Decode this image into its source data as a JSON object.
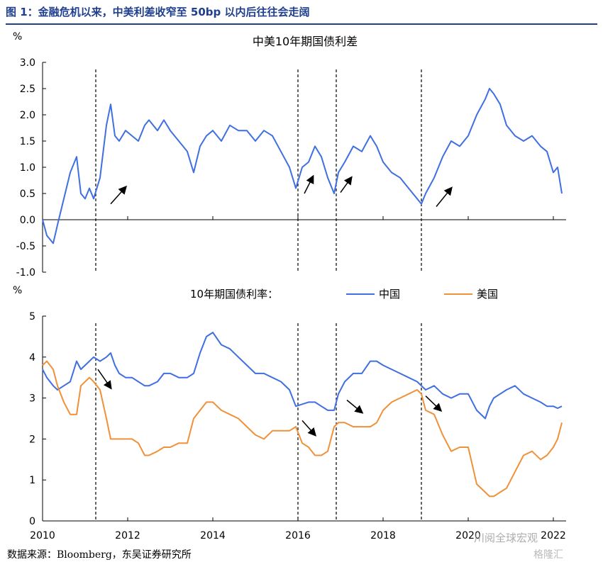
{
  "figure_title": "图 1：金融危机以来，中美利差收窄至 50bp 以内后往往会走阔",
  "source_note": "数据来源：Bloomberg，东吴证券研究所",
  "watermark": "川阅全球宏观",
  "watermark2": "格隆汇",
  "colors": {
    "china": "#3f6fe0",
    "usa": "#f0913a",
    "axis": "#000000",
    "arrow": "#000000"
  },
  "chart_data": [
    {
      "type": "line",
      "title": "中美10年期国债利差",
      "ylabel": "%",
      "ylim": [
        -1.0,
        3.0
      ],
      "yticks": [
        "3.0",
        "2.5",
        "2.0",
        "1.5",
        "1.0",
        "0.5",
        "0.0",
        "-0.5",
        "-1.0"
      ],
      "xlim": [
        2010,
        2022.3
      ],
      "x": [
        2010.0,
        2010.1,
        2010.25,
        2010.35,
        2010.5,
        2010.65,
        2010.8,
        2010.9,
        2011.0,
        2011.1,
        2011.2,
        2011.35,
        2011.5,
        2011.6,
        2011.7,
        2011.8,
        2011.95,
        2012.1,
        2012.25,
        2012.4,
        2012.5,
        2012.7,
        2012.85,
        2013.0,
        2013.2,
        2013.4,
        2013.55,
        2013.7,
        2013.85,
        2014.0,
        2014.2,
        2014.4,
        2014.6,
        2014.8,
        2015.0,
        2015.2,
        2015.4,
        2015.6,
        2015.8,
        2015.95,
        2016.1,
        2016.25,
        2016.4,
        2016.55,
        2016.7,
        2016.85,
        2016.95,
        2017.1,
        2017.3,
        2017.5,
        2017.7,
        2017.85,
        2018.0,
        2018.2,
        2018.4,
        2018.6,
        2018.8,
        2018.9,
        2019.0,
        2019.2,
        2019.4,
        2019.6,
        2019.8,
        2020.0,
        2020.2,
        2020.4,
        2020.5,
        2020.6,
        2020.75,
        2020.9,
        2021.1,
        2021.3,
        2021.5,
        2021.7,
        2021.85,
        2022.0,
        2022.1,
        2022.2
      ],
      "series": [
        {
          "name": "中美10年期国债利差",
          "values": [
            0.0,
            -0.3,
            -0.45,
            -0.1,
            0.4,
            0.9,
            1.2,
            0.5,
            0.4,
            0.6,
            0.4,
            0.8,
            1.8,
            2.2,
            1.6,
            1.5,
            1.7,
            1.6,
            1.5,
            1.8,
            1.9,
            1.7,
            1.9,
            1.7,
            1.5,
            1.3,
            0.9,
            1.4,
            1.6,
            1.7,
            1.5,
            1.8,
            1.7,
            1.7,
            1.5,
            1.7,
            1.6,
            1.3,
            1.0,
            0.6,
            1.0,
            1.1,
            1.4,
            1.2,
            0.8,
            0.5,
            0.9,
            1.1,
            1.4,
            1.3,
            1.6,
            1.4,
            1.1,
            0.9,
            0.8,
            0.6,
            0.4,
            0.3,
            0.5,
            0.8,
            1.2,
            1.5,
            1.4,
            1.6,
            2.0,
            2.3,
            2.5,
            2.4,
            2.2,
            1.8,
            1.6,
            1.5,
            1.6,
            1.4,
            1.3,
            0.9,
            1.0,
            0.5
          ]
        }
      ],
      "vlines": [
        2011.25,
        2016.0,
        2016.9,
        2018.9
      ]
    },
    {
      "type": "line",
      "title": "10年期国债利率：",
      "ylabel": "%",
      "ylim": [
        0,
        5
      ],
      "yticks": [
        "5",
        "4",
        "3",
        "2",
        "1",
        "0"
      ],
      "xlim": [
        2010,
        2022.3
      ],
      "xticks": [
        "2010",
        "2012",
        "2014",
        "2016",
        "2018",
        "2020",
        "2022"
      ],
      "legend": [
        "中国",
        "美国"
      ],
      "x": [
        2010.0,
        2010.1,
        2010.25,
        2010.35,
        2010.5,
        2010.65,
        2010.8,
        2010.9,
        2011.0,
        2011.1,
        2011.2,
        2011.35,
        2011.5,
        2011.6,
        2011.7,
        2011.8,
        2011.95,
        2012.1,
        2012.25,
        2012.4,
        2012.5,
        2012.7,
        2012.85,
        2013.0,
        2013.2,
        2013.4,
        2013.55,
        2013.7,
        2013.85,
        2014.0,
        2014.2,
        2014.4,
        2014.6,
        2014.8,
        2015.0,
        2015.2,
        2015.4,
        2015.6,
        2015.8,
        2015.95,
        2016.1,
        2016.25,
        2016.4,
        2016.55,
        2016.7,
        2016.85,
        2016.95,
        2017.1,
        2017.3,
        2017.5,
        2017.7,
        2017.85,
        2018.0,
        2018.2,
        2018.4,
        2018.6,
        2018.8,
        2018.9,
        2019.0,
        2019.2,
        2019.4,
        2019.6,
        2019.8,
        2020.0,
        2020.2,
        2020.4,
        2020.5,
        2020.6,
        2020.75,
        2020.9,
        2021.1,
        2021.3,
        2021.5,
        2021.7,
        2021.85,
        2022.0,
        2022.1,
        2022.2
      ],
      "series": [
        {
          "name": "中国",
          "values": [
            3.7,
            3.5,
            3.3,
            3.2,
            3.3,
            3.4,
            3.9,
            3.7,
            3.8,
            3.9,
            4.0,
            3.9,
            4.0,
            4.1,
            3.8,
            3.6,
            3.5,
            3.5,
            3.4,
            3.3,
            3.3,
            3.4,
            3.6,
            3.6,
            3.5,
            3.5,
            3.6,
            4.1,
            4.5,
            4.6,
            4.3,
            4.2,
            4.0,
            3.8,
            3.6,
            3.6,
            3.5,
            3.4,
            3.2,
            2.8,
            2.85,
            2.9,
            2.9,
            2.8,
            2.7,
            2.7,
            3.1,
            3.4,
            3.6,
            3.6,
            3.9,
            3.9,
            3.8,
            3.7,
            3.6,
            3.5,
            3.4,
            3.3,
            3.2,
            3.3,
            3.1,
            3.0,
            3.1,
            3.1,
            2.7,
            2.5,
            2.8,
            3.0,
            3.1,
            3.2,
            3.3,
            3.1,
            3.0,
            2.9,
            2.8,
            2.8,
            2.75,
            2.8
          ]
        },
        {
          "name": "美国",
          "values": [
            3.8,
            3.9,
            3.7,
            3.3,
            2.9,
            2.6,
            2.6,
            3.3,
            3.4,
            3.5,
            3.4,
            3.2,
            2.5,
            2.0,
            2.0,
            2.0,
            2.0,
            2.0,
            1.9,
            1.6,
            1.6,
            1.7,
            1.8,
            1.8,
            1.9,
            1.9,
            2.5,
            2.7,
            2.9,
            2.9,
            2.7,
            2.6,
            2.5,
            2.3,
            2.1,
            2.0,
            2.2,
            2.2,
            2.2,
            2.3,
            1.9,
            1.8,
            1.6,
            1.6,
            1.7,
            2.3,
            2.4,
            2.4,
            2.3,
            2.3,
            2.3,
            2.4,
            2.7,
            2.9,
            3.0,
            3.1,
            3.2,
            3.1,
            2.7,
            2.6,
            2.1,
            1.7,
            1.8,
            1.8,
            0.9,
            0.7,
            0.6,
            0.6,
            0.7,
            0.8,
            1.2,
            1.6,
            1.7,
            1.5,
            1.6,
            1.8,
            2.0,
            2.4
          ]
        }
      ],
      "vlines": [
        2011.25,
        2016.0,
        2016.9,
        2018.9
      ]
    }
  ],
  "annotations": {
    "top_arrows": [
      [
        2011.6,
        0.3,
        2011.95,
        0.62
      ],
      [
        2016.15,
        0.5,
        2016.35,
        0.82
      ],
      [
        2017.0,
        0.52,
        2017.25,
        0.8
      ],
      [
        2019.25,
        0.25,
        2019.6,
        0.6
      ]
    ],
    "bottom_arrows": [
      [
        2011.3,
        3.7,
        2011.6,
        3.25
      ],
      [
        2016.1,
        2.45,
        2016.4,
        2.1
      ],
      [
        2017.15,
        2.95,
        2017.5,
        2.65
      ],
      [
        2019.0,
        3.05,
        2019.35,
        2.7
      ]
    ]
  }
}
